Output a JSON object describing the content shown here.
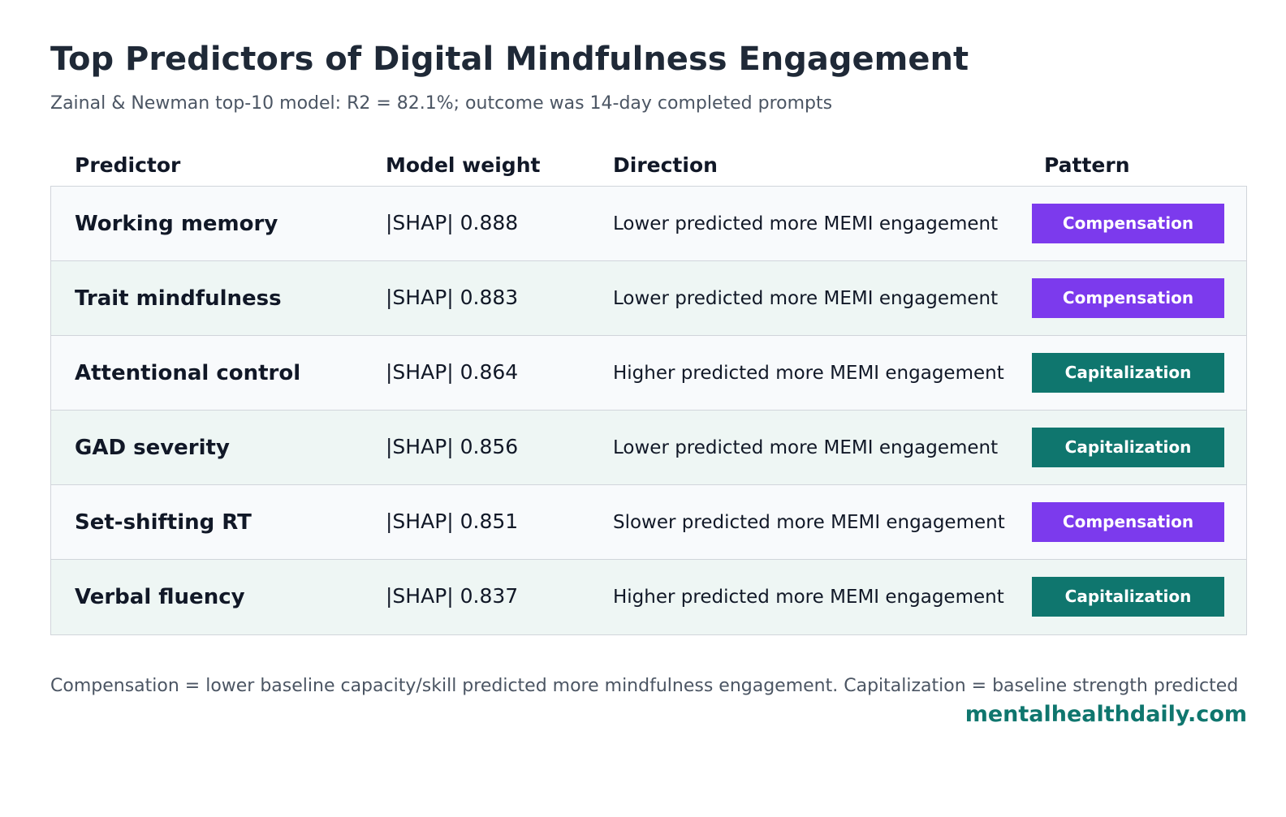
{
  "header": {
    "title": "Top Predictors of Digital Mindfulness Engagement",
    "subtitle": "Zainal & Newman top-10 model: R2 = 82.1%; outcome was 14-day completed prompts"
  },
  "table": {
    "columns": [
      "Predictor",
      "Model weight",
      "Direction",
      "Pattern"
    ],
    "rows": [
      [
        "Working memory",
        "|SHAP| 0.888",
        "Lower predicted more MEMI engagement",
        "Compensation"
      ],
      [
        "Trait mindfulness",
        "|SHAP| 0.883",
        "Lower predicted more MEMI engagement",
        "Compensation"
      ],
      [
        "Attentional control",
        "|SHAP| 0.864",
        "Higher predicted more MEMI engagement",
        "Capitalization"
      ],
      [
        "GAD severity",
        "|SHAP| 0.856",
        "Lower predicted more MEMI engagement",
        "Capitalization"
      ],
      [
        "Set-shifting RT",
        "|SHAP| 0.851",
        "Slower predicted more MEMI engagement",
        "Compensation"
      ],
      [
        "Verbal fluency",
        "|SHAP| 0.837",
        "Higher predicted more MEMI engagement",
        "Capitalization"
      ]
    ],
    "pattern_colors": {
      "Compensation": "#7c3aed",
      "Capitalization": "#0f766e"
    }
  },
  "footer": {
    "note": "Compensation = lower baseline capacity/skill predicted more mindfulness engagement. Capitalization = baseline strength predicted",
    "brand": "mentalhealthdaily.com"
  }
}
